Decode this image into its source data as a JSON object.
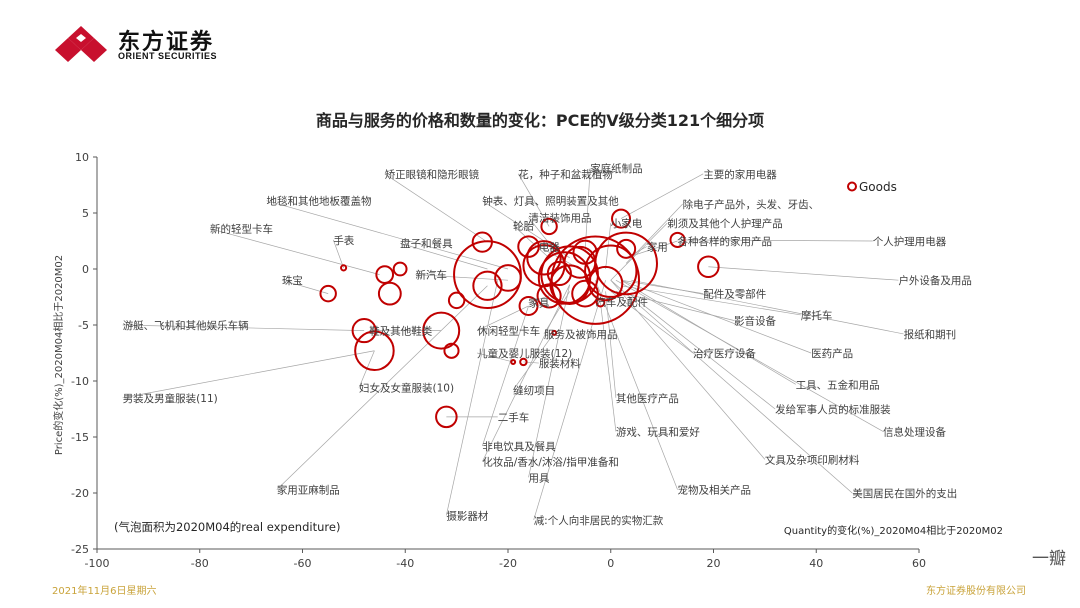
{
  "brand": {
    "name_cn": "东方证券",
    "name_en": "ORIENT SECURITIES"
  },
  "footer": {
    "date": "2021年11月6日星期六",
    "company": "东方证券股份有限公司"
  },
  "watermark": "一瓣",
  "colors": {
    "bubble": "#c00000",
    "axis": "#595959",
    "leader": "#a6a6a6",
    "footer": "#c9a33a"
  },
  "chart_data": {
    "type": "scatter",
    "title": "商品与服务的价格和数量的变化：PCE的V级分类121个细分项",
    "xlabel": "Quantity的变化(%)_2020M04相比于2020M02",
    "ylabel": "Price的变化(%)_2020M04相比于2020M02",
    "note": "(气泡面积为2020M04的real expenditure)",
    "xlim": [
      -100,
      60
    ],
    "ylim": [
      -25,
      10
    ],
    "xticks": [
      -100,
      -80,
      -60,
      -40,
      -20,
      0,
      20,
      40,
      60
    ],
    "yticks": [
      -25,
      -20,
      -15,
      -10,
      -5,
      0,
      5,
      10
    ],
    "grid": false,
    "legend": {
      "label": "Goods",
      "x": 47,
      "y": 7.3
    },
    "bubbles": [
      {
        "x": -3,
        "y": -1,
        "r": 3.4
      },
      {
        "x": -8,
        "y": -0.5,
        "r": 2.2
      },
      {
        "x": 3,
        "y": 0.5,
        "r": 2.4
      },
      {
        "x": -13,
        "y": 0.3,
        "r": 1.6
      },
      {
        "x": -24,
        "y": -0.5,
        "r": 2.6
      },
      {
        "x": 2,
        "y": 4.5,
        "r": 0.7
      },
      {
        "x": -12,
        "y": 3.8,
        "r": 0.6
      },
      {
        "x": -5,
        "y": 1.5,
        "r": 0.9
      },
      {
        "x": 3,
        "y": 1.8,
        "r": 0.7
      },
      {
        "x": 13,
        "y": 2.6,
        "r": 0.55
      },
      {
        "x": 19,
        "y": 0.2,
        "r": 0.8
      },
      {
        "x": -16,
        "y": 2.0,
        "r": 0.8
      },
      {
        "x": -25,
        "y": 2.4,
        "r": 0.75
      },
      {
        "x": -41,
        "y": 0.0,
        "r": 0.5
      },
      {
        "x": -44,
        "y": -0.5,
        "r": 0.65
      },
      {
        "x": -52,
        "y": 0.1,
        "r": 0.2
      },
      {
        "x": -55,
        "y": -2.2,
        "r": 0.6
      },
      {
        "x": -43,
        "y": -2.2,
        "r": 0.85
      },
      {
        "x": -30,
        "y": -2.8,
        "r": 0.6
      },
      {
        "x": -24,
        "y": -1.5,
        "r": 1.1
      },
      {
        "x": -8,
        "y": -1.4,
        "r": 1.5
      },
      {
        "x": -5,
        "y": -2.2,
        "r": 1.0
      },
      {
        "x": -1,
        "y": -1.3,
        "r": 1.3
      },
      {
        "x": -12,
        "y": -2.4,
        "r": 0.9
      },
      {
        "x": -16,
        "y": -3.3,
        "r": 0.7
      },
      {
        "x": -2,
        "y": -3.0,
        "r": 0.3
      },
      {
        "x": -10,
        "y": -0.4,
        "r": 0.9
      },
      {
        "x": -33,
        "y": -5.5,
        "r": 1.4
      },
      {
        "x": -31,
        "y": -7.3,
        "r": 0.55
      },
      {
        "x": -48,
        "y": -5.5,
        "r": 0.9
      },
      {
        "x": -46,
        "y": -7.3,
        "r": 1.5
      },
      {
        "x": -19,
        "y": -8.3,
        "r": 0.12
      },
      {
        "x": -17,
        "y": -8.3,
        "r": 0.25
      },
      {
        "x": -11,
        "y": -5.7,
        "r": 0.12
      },
      {
        "x": -32,
        "y": -13.2,
        "r": 0.8
      },
      {
        "x": -20,
        "y": -0.8,
        "r": 1.0
      },
      {
        "x": -13,
        "y": 1.0,
        "r": 1.3
      },
      {
        "x": -6,
        "y": 0.6,
        "r": 1.2
      },
      {
        "x": 0,
        "y": -0.2,
        "r": 2.0
      },
      {
        "x": -9,
        "y": -0.8,
        "r": 2.0
      }
    ],
    "annotations": [
      {
        "text": "矫正眼镜和隐形眼镜",
        "tx": -44,
        "ty": 8.5,
        "ax": -24,
        "ay": 2.4
      },
      {
        "text": "花，种子和盆栽植物",
        "tx": -18,
        "ty": 8.5,
        "ax": -12,
        "ay": 3.8
      },
      {
        "text": "家庭纸制品",
        "tx": -4,
        "ty": 9.0,
        "ax": -5,
        "ay": 1.5
      },
      {
        "text": "主要的家用电器",
        "tx": 18,
        "ty": 8.5,
        "ax": 2,
        "ay": 4.5
      },
      {
        "text": "地毯和其他地板覆盖物",
        "tx": -67,
        "ty": 6.1,
        "ax": -20,
        "ay": 0
      },
      {
        "text": "钟表、灯具、照明装置及其他",
        "tx": -25,
        "ty": 6.1,
        "ax": -8,
        "ay": 1
      },
      {
        "text": "除电子产品外，头发、牙齿、",
        "tx": 14,
        "ty": 5.8,
        "ax": 3,
        "ay": 0.5
      },
      {
        "text": "轮胎",
        "tx": -19,
        "ty": 3.9,
        "ax": -12,
        "ay": 1
      },
      {
        "text": "清洁装饰用品",
        "tx": -16,
        "ty": 4.6,
        "ax": -8,
        "ay": 0
      },
      {
        "text": "小家电",
        "tx": 0,
        "ty": 4.1,
        "ax": -1,
        "ay": 0
      },
      {
        "text": "剃须及其他个人护理产品",
        "tx": 11,
        "ty": 4.1,
        "ax": 0,
        "ay": -1
      },
      {
        "text": "新的轻型卡车",
        "tx": -78,
        "ty": 3.6,
        "ax": -45,
        "ay": -0.5
      },
      {
        "text": "手表",
        "tx": -54,
        "ty": 2.6,
        "ax": -52,
        "ay": 0.1
      },
      {
        "text": "盘子和餐具",
        "tx": -41,
        "ty": 2.3,
        "ax": -24,
        "ay": 0
      },
      {
        "text": "电器",
        "tx": -14,
        "ty": 2.0,
        "ax": -6,
        "ay": 0
      },
      {
        "text": "家用",
        "tx": 7,
        "ty": 2.0,
        "ax": 3,
        "ay": 1
      },
      {
        "text": "各种各样的家用产品",
        "tx": 13,
        "ty": 2.5,
        "ax": 3,
        "ay": 1
      },
      {
        "text": "个人护理用电器",
        "tx": 51,
        "ty": 2.5,
        "ax": 13,
        "ay": 2.6
      },
      {
        "text": "珠宝",
        "tx": -64,
        "ty": -1.0,
        "ax": -55,
        "ay": -2.2
      },
      {
        "text": "新汽车",
        "tx": -38,
        "ty": -0.5,
        "ax": -20,
        "ay": -1
      },
      {
        "text": "户外设备及用品",
        "tx": 56,
        "ty": -1.0,
        "ax": 19,
        "ay": 0.2
      },
      {
        "text": "家具",
        "tx": -16,
        "ty": -3.0,
        "ax": -12,
        "ay": -2.4
      },
      {
        "text": "汽车及配件",
        "tx": -3,
        "ty": -2.9,
        "ax": -2,
        "ay": -3
      },
      {
        "text": "配件及零部件",
        "tx": 18,
        "ty": -2.2,
        "ax": 2,
        "ay": -1
      },
      {
        "text": "摩托车",
        "tx": 37,
        "ty": -4.1,
        "ax": 2,
        "ay": -1.5
      },
      {
        "text": "游艇、飞机和其他娱乐车辆",
        "tx": -95,
        "ty": -5.0,
        "ax": -48,
        "ay": -5.5
      },
      {
        "text": "鞋及其他鞋类",
        "tx": -47,
        "ty": -5.5,
        "ax": -33,
        "ay": -5.5
      },
      {
        "text": "休闲轻型卡车",
        "tx": -26,
        "ty": -5.5,
        "ax": -16,
        "ay": -3.3
      },
      {
        "text": "服务及被饰用品",
        "tx": -13,
        "ty": -5.8,
        "ax": -8,
        "ay": -2
      },
      {
        "text": "影音设备",
        "tx": 24,
        "ty": -4.6,
        "ax": 1,
        "ay": -2
      },
      {
        "text": "报纸和期刊",
        "tx": 57,
        "ty": -5.8,
        "ax": 4,
        "ay": -1
      },
      {
        "text": "儿童及婴儿服装(12)",
        "tx": -26,
        "ty": -7.5,
        "ax": -19,
        "ay": -8.3
      },
      {
        "text": "治疗医疗设备",
        "tx": 16,
        "ty": -7.5,
        "ax": 0,
        "ay": -2
      },
      {
        "text": "医药产品",
        "tx": 39,
        "ty": -7.5,
        "ax": 2,
        "ay": -1
      },
      {
        "text": "服装材料",
        "tx": -14,
        "ty": -8.4,
        "ax": -17,
        "ay": -8.3
      },
      {
        "text": "妇女及女童服装(10)",
        "tx": -49,
        "ty": -10.6,
        "ax": -46,
        "ay": -7.3
      },
      {
        "text": "缝纫项目",
        "tx": -19,
        "ty": -10.8,
        "ax": -11,
        "ay": -5.7
      },
      {
        "text": "工具、五金和用品",
        "tx": 36,
        "ty": -10.3,
        "ax": 2,
        "ay": -1
      },
      {
        "text": "男装及男童服装(11)",
        "tx": -95,
        "ty": -11.5,
        "ax": -46,
        "ay": -7.3
      },
      {
        "text": "其他医疗产品",
        "tx": 1,
        "ty": -11.5,
        "ax": -1,
        "ay": -2
      },
      {
        "text": "发给军事人员的标准服装",
        "tx": 32,
        "ty": -12.5,
        "ax": 3,
        "ay": -2
      },
      {
        "text": "二手车",
        "tx": -22,
        "ty": -13.2,
        "ax": -32,
        "ay": -13.2
      },
      {
        "text": "游戏、玩具和爱好",
        "tx": 1,
        "ty": -14.5,
        "ax": -2,
        "ay": -3
      },
      {
        "text": "信息处理设备",
        "tx": 53,
        "ty": -14.5,
        "ax": 1,
        "ay": -1
      },
      {
        "text": "非电饮具及餐具",
        "tx": -25,
        "ty": -15.8,
        "ax": -16,
        "ay": -3.3
      },
      {
        "text": "化妆品/香水/沐浴/指甲准备和",
        "tx": -25,
        "ty": -17.2,
        "ax": -8,
        "ay": -1.4
      },
      {
        "text": "用具",
        "tx": -16,
        "ty": -18.6,
        "ax": -8,
        "ay": -1.4
      },
      {
        "text": "文具及杂项印刷材料",
        "tx": 30,
        "ty": -17.0,
        "ax": 0,
        "ay": -1
      },
      {
        "text": "宠物及相关产品",
        "tx": 13,
        "ty": -19.7,
        "ax": -3,
        "ay": -1
      },
      {
        "text": "美国居民在国外的支出",
        "tx": 47,
        "ty": -20.0,
        "ax": 0,
        "ay": -1
      },
      {
        "text": "家用亚麻制品",
        "tx": -65,
        "ty": -19.7,
        "ax": -24,
        "ay": -1.5
      },
      {
        "text": "摄影器材",
        "tx": -32,
        "ty": -22.0,
        "ax": -22,
        "ay": -1
      },
      {
        "text": "减:个人向非居民的实物汇款",
        "tx": -15,
        "ty": -22.4,
        "ax": -1,
        "ay": -1
      }
    ]
  }
}
